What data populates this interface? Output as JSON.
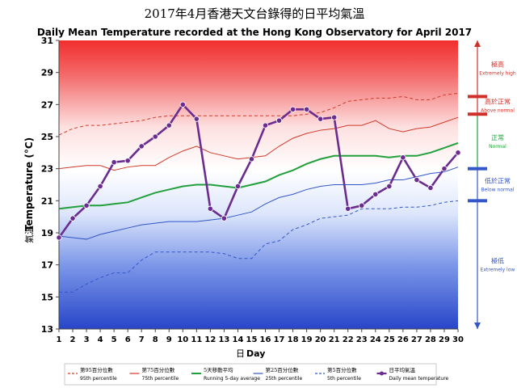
{
  "chart_data": {
    "type": "line",
    "title_zh": "2017年4月香港天文台錄得的日平均氣溫",
    "title_en": "Daily Mean Temperature recorded at the Hong Kong Observatory for April 2017",
    "xlabel_zh": "日",
    "xlabel_en": "Day",
    "ylabel_zh": "氣溫",
    "ylabel_en": "Temperature (°C)",
    "x": [
      1,
      2,
      3,
      4,
      5,
      6,
      7,
      8,
      9,
      10,
      11,
      12,
      13,
      14,
      15,
      16,
      17,
      18,
      19,
      20,
      21,
      22,
      23,
      24,
      25,
      26,
      27,
      28,
      29,
      30
    ],
    "ylim": [
      13,
      31
    ],
    "yticks": [
      13,
      15,
      17,
      19,
      21,
      23,
      25,
      27,
      29,
      31
    ],
    "series": [
      {
        "key": "p95",
        "name_zh": "第95百分位數",
        "name_en": "95th percentile",
        "color": "#d03a2a",
        "dash": "4,3",
        "values": [
          25.1,
          25.5,
          25.7,
          25.7,
          25.8,
          25.9,
          26.0,
          26.2,
          26.3,
          26.3,
          26.3,
          26.3,
          26.3,
          26.3,
          26.3,
          26.3,
          26.3,
          26.3,
          26.4,
          26.5,
          26.8,
          27.2,
          27.3,
          27.4,
          27.4,
          27.5,
          27.3,
          27.3,
          27.6,
          27.7
        ]
      },
      {
        "key": "p75",
        "name_zh": "第75百分位數",
        "name_en": "75th percentile",
        "color": "#d03a2a",
        "dash": "",
        "values": [
          23.0,
          23.1,
          23.2,
          23.2,
          22.9,
          23.1,
          23.2,
          23.2,
          23.7,
          24.1,
          24.4,
          24.0,
          23.8,
          23.6,
          23.7,
          23.8,
          24.4,
          24.9,
          25.2,
          25.4,
          25.5,
          25.7,
          25.7,
          26.0,
          25.5,
          25.3,
          25.5,
          25.6,
          25.9,
          26.2
        ]
      },
      {
        "key": "avg5",
        "name_zh": "5天移動平均",
        "name_en": "Running 5-day average",
        "color": "#22a03c",
        "dash": "",
        "values": [
          20.5,
          20.6,
          20.7,
          20.7,
          20.8,
          20.9,
          21.2,
          21.5,
          21.7,
          21.9,
          22.0,
          22.0,
          21.9,
          21.8,
          22.0,
          22.2,
          22.6,
          22.9,
          23.3,
          23.6,
          23.8,
          23.8,
          23.8,
          23.8,
          23.7,
          23.8,
          23.8,
          24.0,
          24.3,
          24.6
        ]
      },
      {
        "key": "p25",
        "name_zh": "第25百分位數",
        "name_en": "25th percentile",
        "color": "#3356c8",
        "dash": "",
        "values": [
          18.8,
          18.7,
          18.6,
          18.9,
          19.1,
          19.3,
          19.5,
          19.6,
          19.7,
          19.7,
          19.7,
          19.8,
          19.9,
          20.1,
          20.3,
          20.8,
          21.2,
          21.4,
          21.7,
          21.9,
          22.0,
          22.0,
          22.0,
          22.1,
          22.3,
          22.3,
          22.5,
          22.7,
          22.8,
          23.1
        ]
      },
      {
        "key": "p5",
        "name_zh": "第5百分位數",
        "name_en": "5th percentile",
        "color": "#3356c8",
        "dash": "4,3",
        "values": [
          15.3,
          15.3,
          15.8,
          16.2,
          16.5,
          16.5,
          17.3,
          17.8,
          17.8,
          17.8,
          17.8,
          17.8,
          17.7,
          17.4,
          17.4,
          18.3,
          18.5,
          19.2,
          19.5,
          19.9,
          20.0,
          20.1,
          20.5,
          20.5,
          20.5,
          20.6,
          20.6,
          20.7,
          20.9,
          21.0
        ]
      },
      {
        "key": "daily",
        "name_zh": "日平均氣溫",
        "name_en": "Daily mean temperature",
        "color": "#6a2d8f",
        "dash": "",
        "markers": true,
        "values": [
          18.7,
          19.9,
          20.7,
          21.9,
          23.4,
          23.5,
          24.4,
          25.0,
          25.7,
          27.0,
          26.1,
          20.5,
          19.9,
          21.9,
          23.6,
          25.7,
          26.0,
          26.7,
          26.7,
          26.1,
          26.2,
          20.5,
          20.7,
          21.4,
          21.9,
          23.7,
          22.3,
          21.8,
          23.0,
          24.0
        ]
      }
    ],
    "categories_right": [
      {
        "zh": "極高",
        "en": "Extremely high",
        "color": "#d0302a"
      },
      {
        "zh": "高於正常",
        "en": "Above normal",
        "color": "#d0302a"
      },
      {
        "zh": "正常",
        "en": "Normal",
        "color": "#22a03c"
      },
      {
        "zh": "低於正常",
        "en": "Below normal",
        "color": "#3356c8"
      },
      {
        "zh": "極低",
        "en": "Extremely low",
        "color": "#3356c8"
      }
    ],
    "grid": false,
    "legend_position": "bottom"
  }
}
